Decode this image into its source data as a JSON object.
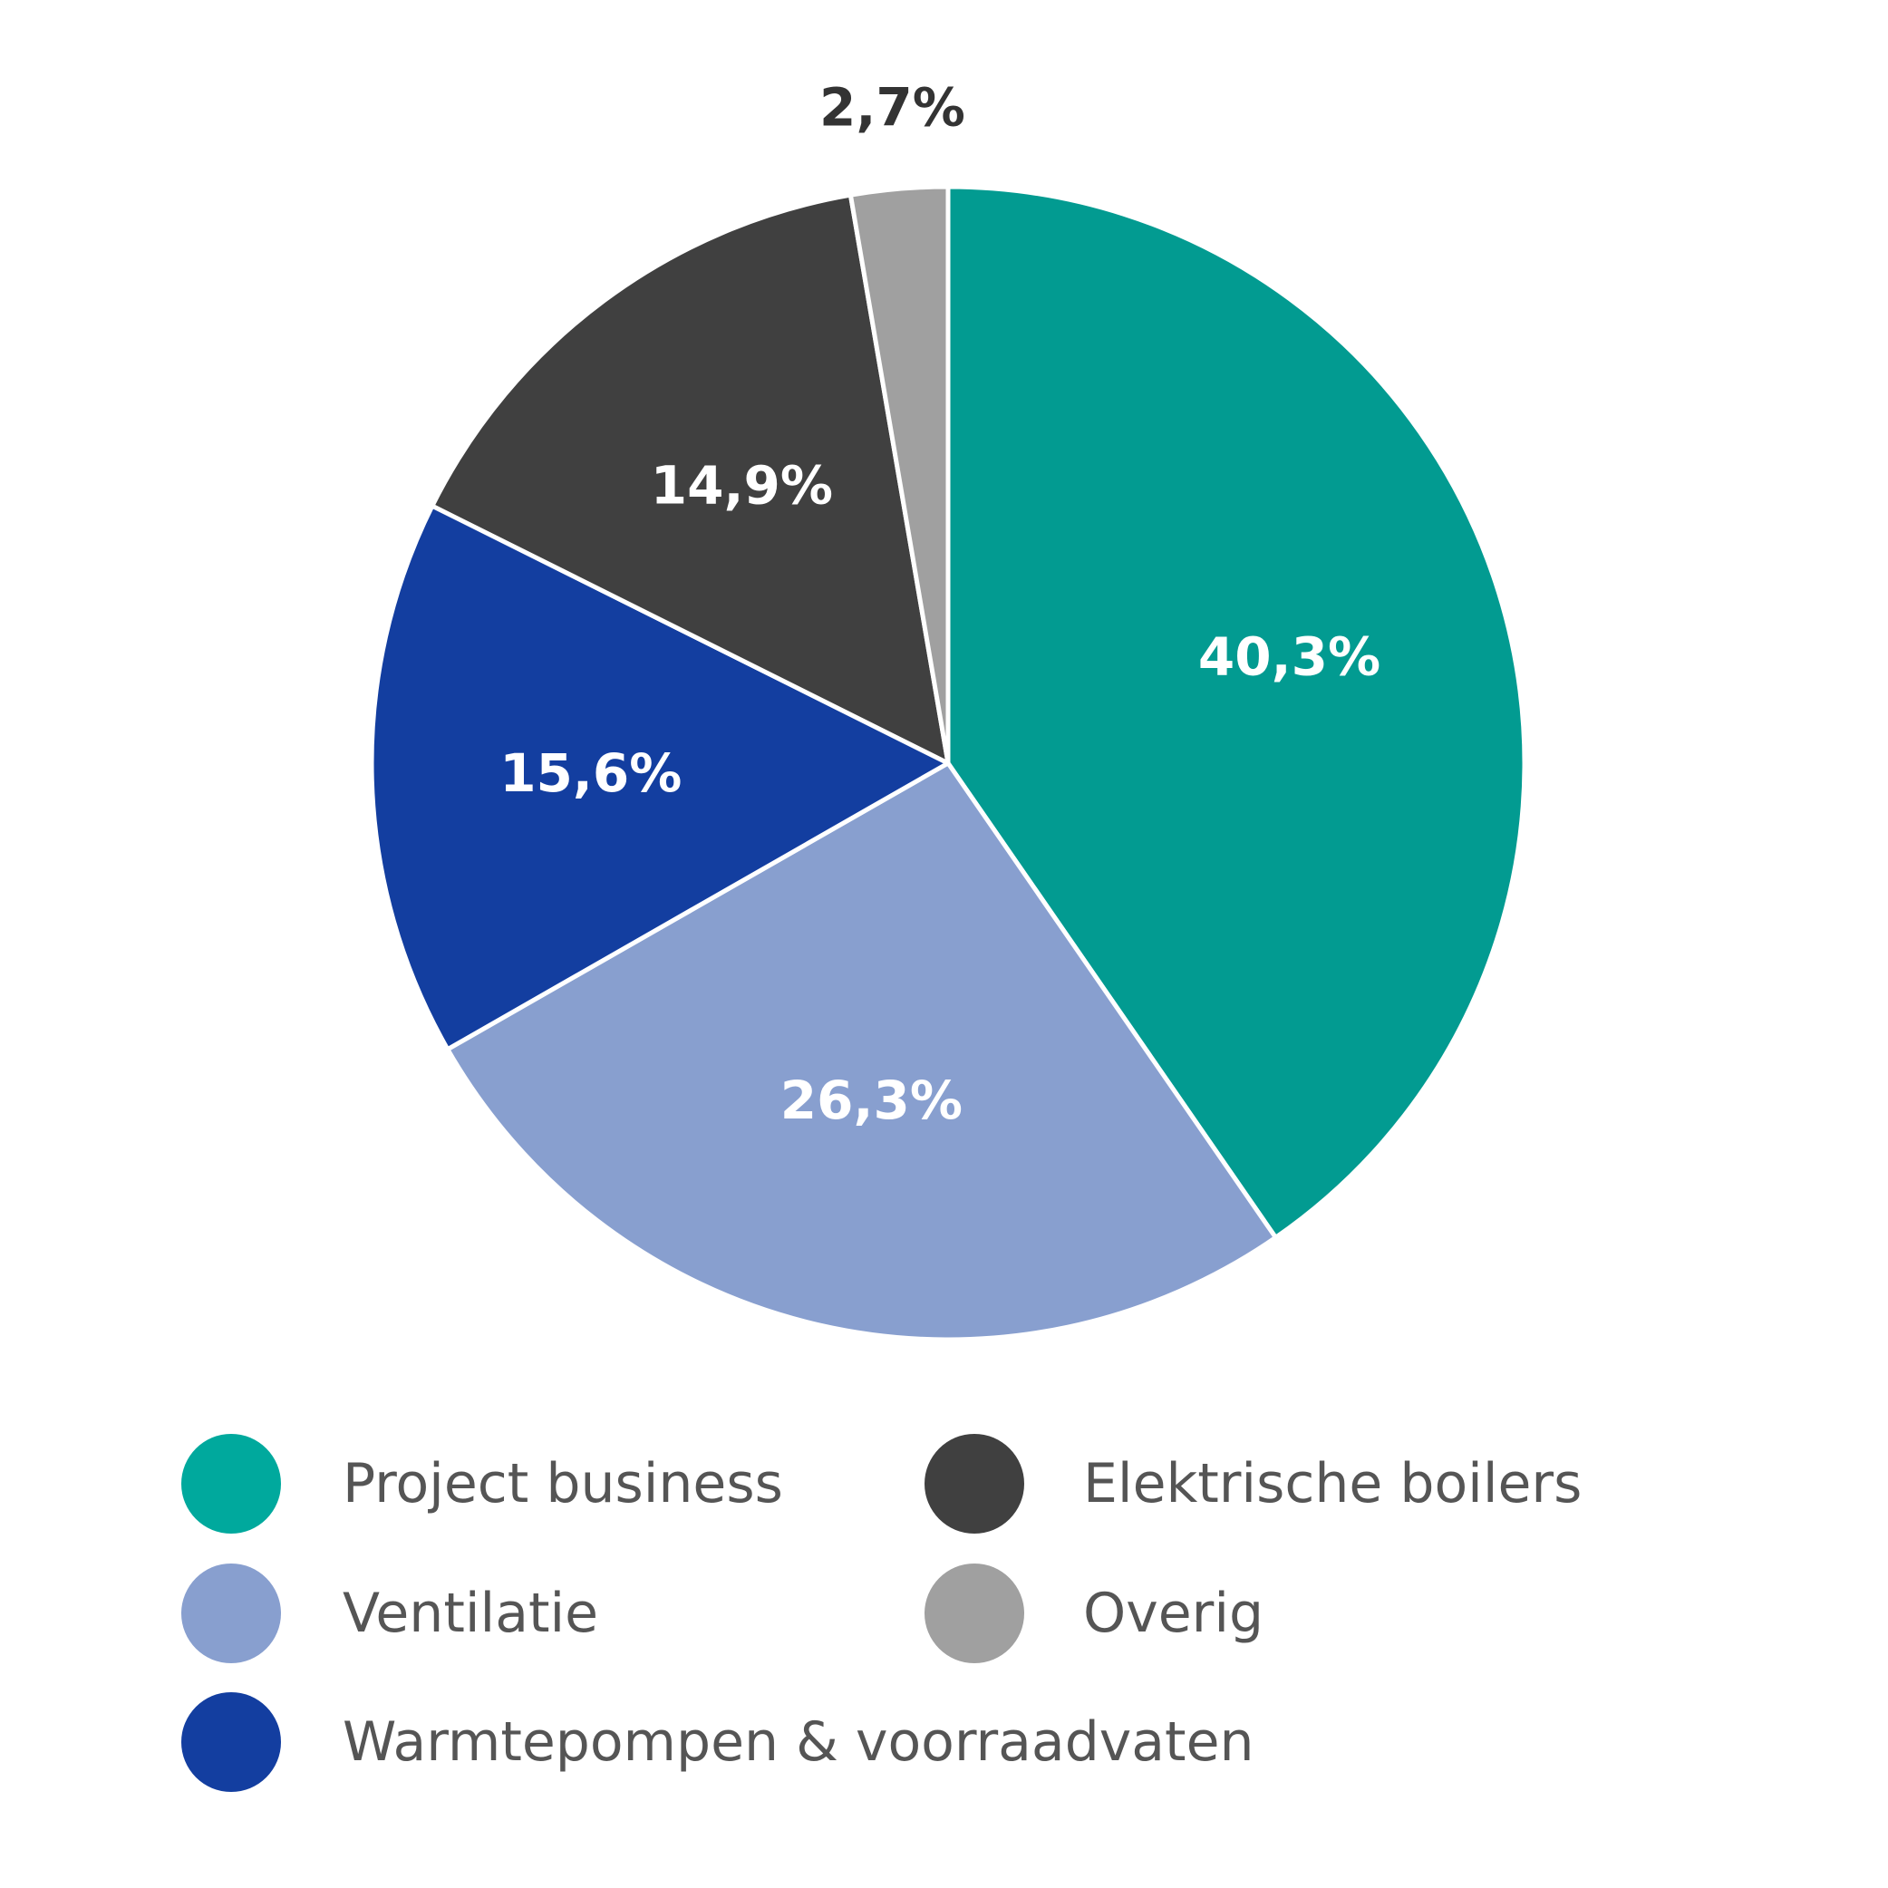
{
  "chart_data": {
    "type": "pie",
    "title": "",
    "slices": [
      {
        "name": "Project business",
        "value": 40.3,
        "label": "40,3%",
        "color": "#029b91",
        "legend_color": "#00a99d",
        "label_color": "#ffffff"
      },
      {
        "name": "Ventilatie",
        "value": 26.3,
        "label": "26,3%",
        "color": "#889fcf",
        "legend_color": "#889fcf",
        "label_color": "#ffffff"
      },
      {
        "name": "Warmtepompen & voorraadvaten",
        "value": 15.6,
        "label": "15,6%",
        "color": "#133ea0",
        "legend_color": "#133ea0",
        "label_color": "#ffffff"
      },
      {
        "name": "Elektrische boilers",
        "value": 14.9,
        "label": "14,9%",
        "color": "#404040",
        "legend_color": "#404040",
        "label_color": "#ffffff"
      },
      {
        "name": "Overig",
        "value": 2.7,
        "label": "2,7%",
        "color": "#a0a0a0",
        "legend_color": "#a0a0a0",
        "label_color": "#333333"
      }
    ],
    "legend_position": "bottom",
    "start_angle": "12 o'clock",
    "direction": "clockwise"
  }
}
